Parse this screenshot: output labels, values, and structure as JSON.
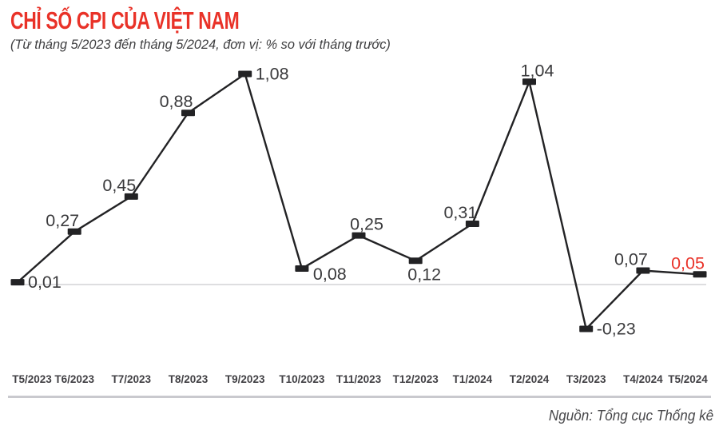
{
  "header": {
    "title": "CHỈ SỐ CPI CỦA VIỆT NAM",
    "subtitle": "(Từ tháng 5/2023 đến tháng 5/2024, đơn vị: % so với tháng trước)"
  },
  "footer": {
    "source": "Nguồn: Tổng cục Thống kê"
  },
  "colors": {
    "accent_red": "#e93228",
    "line_black": "#222224",
    "value_text": "#3a3a3c",
    "axis_text": "#414044",
    "zero_line": "#dedee0",
    "bottom_divider": "#c9c9ce",
    "background": "#ffffff"
  },
  "chart_data": {
    "type": "line",
    "title": "CHỈ SỐ CPI CỦA VIỆT NAM",
    "subtitle": "(Từ tháng 5/2023 đến tháng 5/2024, đơn vị: % so với tháng trước)",
    "unit": "% so với tháng trước",
    "categories": [
      "T5/2023",
      "T6/2023",
      "T7/2023",
      "T8/2023",
      "T9/2023",
      "T10/2023",
      "T11/2023",
      "T12/2023",
      "T1/2024",
      "T2/2024",
      "T3/2023",
      "T4/2024",
      "T5/2024"
    ],
    "values": [
      0.01,
      0.27,
      0.45,
      0.88,
      1.08,
      0.08,
      0.25,
      0.12,
      0.31,
      1.04,
      -0.23,
      0.07,
      0.05
    ],
    "point_labels": [
      "0,01",
      "0,27",
      "0,45",
      "0,88",
      "1,08",
      "0,08",
      "0,25",
      "0,12",
      "0,31",
      "1,04",
      "-0,23",
      "0,07",
      "0,05"
    ],
    "label_placements": [
      "right",
      "above-left",
      "above-left",
      "above-left",
      "right",
      "below-right",
      "above-right",
      "below",
      "above-left",
      "above-right",
      "right",
      "above-left",
      "above-left"
    ],
    "highlight_last_label": true,
    "ylim": [
      -0.4,
      1.25
    ],
    "baseline": 0,
    "grid": false,
    "legend": false,
    "marker_shape": "rect"
  }
}
